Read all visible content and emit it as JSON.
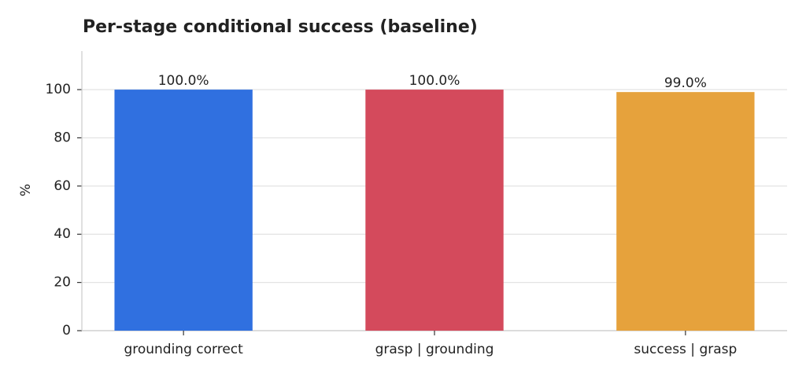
{
  "chart_data": {
    "type": "bar",
    "title": "Per-stage conditional success (baseline)",
    "y_label": "%",
    "categories": [
      "grounding correct",
      "grasp | grounding",
      "success | grasp"
    ],
    "values": [
      100,
      100,
      99
    ],
    "value_labels": [
      "100.0%",
      "100.0%",
      "99.0%"
    ],
    "colors": [
      "#3070e0",
      "#d44a5c",
      "#e6a23c"
    ],
    "ylim": [
      0,
      116
    ],
    "yticks": [
      0,
      20,
      40,
      60,
      80,
      100
    ],
    "grid": true
  }
}
